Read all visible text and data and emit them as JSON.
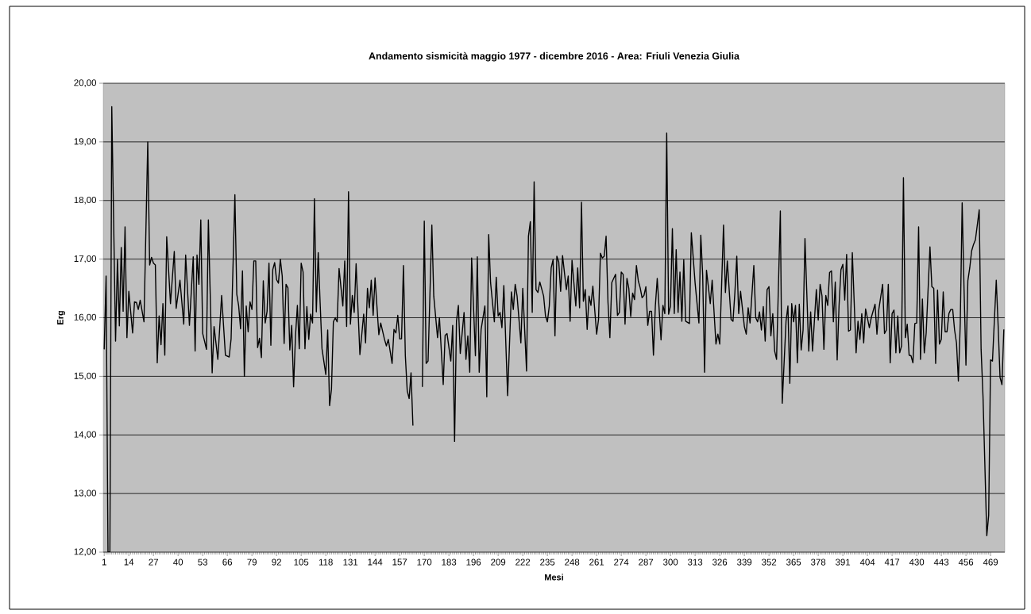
{
  "chart_data": {
    "type": "line",
    "title": "Andamento sismicità maggio 1977 - dicembre 2016 - Area: Friuli Venezia Giulia",
    "xlabel": "Mesi",
    "ylabel": "Erg",
    "xlim": [
      0.5,
      476.5
    ],
    "xticks": [
      1,
      14,
      27,
      40,
      53,
      66,
      79,
      92,
      105,
      118,
      131,
      144,
      157,
      170,
      183,
      196,
      209,
      222,
      235,
      248,
      261,
      274,
      287,
      300,
      313,
      326,
      339,
      352,
      365,
      378,
      391,
      404,
      417,
      430,
      443,
      456,
      469
    ],
    "ylim": [
      12,
      20
    ],
    "yticks": [
      {
        "value": 12,
        "label": "12,00"
      },
      {
        "value": 13,
        "label": "13,00"
      },
      {
        "value": 14,
        "label": "14,00"
      },
      {
        "value": 15,
        "label": "15,00"
      },
      {
        "value": 16,
        "label": "16,00"
      },
      {
        "value": 17,
        "label": "17,00"
      },
      {
        "value": 18,
        "label": "18,00"
      },
      {
        "value": 19,
        "label": "19,00"
      },
      {
        "value": 20,
        "label": "20,00"
      }
    ],
    "grid": "y",
    "marker": "none",
    "line_style": "solid",
    "series": [
      {
        "color": "#000000",
        "x": [
          1,
          2,
          3,
          4,
          5,
          7,
          8,
          9,
          10,
          11,
          12,
          13,
          14,
          16,
          17,
          18,
          19,
          20,
          22,
          24,
          25,
          26,
          27,
          28,
          29,
          30,
          31,
          32,
          33,
          34,
          36,
          38,
          39,
          41,
          43,
          44,
          46,
          48,
          49,
          50,
          51,
          52,
          53,
          55,
          56,
          58,
          59,
          61,
          63,
          65,
          67,
          68,
          70,
          71,
          72,
          73,
          74,
          75,
          76,
          77,
          78,
          79,
          80,
          81,
          82,
          83,
          84,
          85,
          86,
          87,
          88,
          89,
          90,
          91,
          92,
          93,
          94,
          95,
          96,
          97,
          98,
          99,
          100,
          101,
          102,
          103,
          104,
          105,
          106,
          107,
          108,
          109,
          110,
          111,
          112,
          113,
          114,
          115,
          116,
          118,
          119,
          120,
          121,
          122,
          123,
          124,
          125,
          127,
          128,
          129,
          130,
          131,
          132,
          133,
          134,
          136,
          138,
          139,
          140,
          141,
          142,
          143,
          144,
          146,
          147,
          149,
          150,
          151,
          153,
          154,
          155,
          156,
          157,
          158,
          159,
          160,
          161,
          162,
          163,
          164,
          166,
          169,
          170,
          171,
          172,
          174,
          175,
          177,
          178,
          180,
          181,
          182,
          184,
          185,
          186,
          187,
          188,
          189,
          191,
          192,
          193,
          194,
          195,
          197,
          198,
          199,
          200,
          202,
          203,
          204,
          205,
          207,
          208,
          209,
          210,
          211,
          212,
          214,
          216,
          217,
          218,
          219,
          221,
          222,
          224,
          225,
          226,
          227,
          228,
          229,
          230,
          231,
          233,
          234,
          235,
          236,
          237,
          238,
          239,
          240,
          241,
          242,
          243,
          245,
          246,
          247,
          248,
          250,
          251,
          252,
          253,
          254,
          255,
          256,
          257,
          258,
          259,
          261,
          262,
          263,
          264,
          265,
          266,
          267,
          268,
          269,
          271,
          272,
          273,
          274,
          275,
          276,
          277,
          278,
          279,
          280,
          281,
          282,
          283,
          284,
          285,
          286,
          287,
          288,
          289,
          290,
          291,
          292,
          293,
          295,
          296,
          297,
          298,
          299,
          300,
          301,
          302,
          303,
          304,
          305,
          306,
          307,
          308,
          310,
          311,
          313,
          315,
          316,
          317,
          318,
          319,
          321,
          322,
          324,
          325,
          326,
          328,
          329,
          330,
          332,
          333,
          334,
          335,
          336,
          337,
          339,
          340,
          341,
          342,
          344,
          345,
          346,
          347,
          348,
          349,
          350,
          351,
          352,
          353,
          354,
          355,
          356,
          358,
          359,
          361,
          362,
          363,
          364,
          365,
          366,
          367,
          368,
          369,
          370,
          371,
          373,
          374,
          375,
          377,
          378,
          379,
          380,
          381,
          382,
          383,
          384,
          385,
          386,
          387,
          388,
          389,
          390,
          391,
          392,
          393,
          394,
          395,
          396,
          398,
          399,
          400,
          401,
          402,
          403,
          405,
          406,
          408,
          409,
          410,
          412,
          413,
          414,
          415,
          416,
          417,
          418,
          419,
          420,
          421,
          422,
          423,
          424,
          425,
          426,
          427,
          428,
          429,
          430,
          431,
          432,
          433,
          434,
          435,
          437,
          438,
          439,
          440,
          441,
          442,
          443,
          444,
          445,
          446,
          447,
          448,
          449,
          450,
          451,
          452,
          453,
          454,
          455,
          456,
          457,
          458,
          459,
          460,
          461,
          463,
          464,
          465,
          467,
          468,
          469,
          470,
          472,
          473,
          474,
          475,
          476
        ],
        "values": [
          15.46,
          16.71,
          12.0,
          12.0,
          19.6,
          15.6,
          17.0,
          15.86,
          17.2,
          16.11,
          17.55,
          15.66,
          16.45,
          15.74,
          16.27,
          16.26,
          16.14,
          16.3,
          15.93,
          19.0,
          16.9,
          17.03,
          16.93,
          16.9,
          15.23,
          16.03,
          15.54,
          16.24,
          15.36,
          17.38,
          16.24,
          17.13,
          16.16,
          16.64,
          15.89,
          17.07,
          15.87,
          17.04,
          15.43,
          17.07,
          16.57,
          17.67,
          15.73,
          15.46,
          17.67,
          15.06,
          15.85,
          15.29,
          16.38,
          15.36,
          15.33,
          15.64,
          18.1,
          16.4,
          16.2,
          15.81,
          16.8,
          15.0,
          16.2,
          15.76,
          16.27,
          16.14,
          16.97,
          16.97,
          15.49,
          15.65,
          15.32,
          16.63,
          15.91,
          16.11,
          16.93,
          15.53,
          16.82,
          16.94,
          16.65,
          16.59,
          17.0,
          16.71,
          15.56,
          16.57,
          16.51,
          15.45,
          15.87,
          14.82,
          15.69,
          16.21,
          15.47,
          16.93,
          16.78,
          15.47,
          16.19,
          15.63,
          16.06,
          15.91,
          18.03,
          16.1,
          17.11,
          16.26,
          15.47,
          15.03,
          15.79,
          14.5,
          14.78,
          15.93,
          16.0,
          15.93,
          16.84,
          16.2,
          16.97,
          15.85,
          18.15,
          15.89,
          16.38,
          16.09,
          16.92,
          15.37,
          16.06,
          15.57,
          16.5,
          16.17,
          16.64,
          16.04,
          16.68,
          15.71,
          15.91,
          15.63,
          15.52,
          15.63,
          15.22,
          15.8,
          15.74,
          16.04,
          15.64,
          15.64,
          16.89,
          15.35,
          14.75,
          14.62,
          15.06,
          14.16,
          null,
          14.82,
          17.65,
          15.22,
          15.26,
          17.58,
          16.37,
          15.66,
          16.0,
          14.86,
          15.7,
          15.73,
          15.26,
          15.87,
          13.89,
          15.94,
          16.21,
          15.39,
          16.09,
          15.29,
          15.69,
          15.07,
          17.02,
          15.35,
          17.04,
          15.07,
          15.8,
          16.2,
          14.65,
          17.42,
          16.6,
          15.93,
          16.69,
          16.03,
          16.09,
          15.83,
          16.55,
          14.67,
          16.44,
          16.14,
          16.57,
          16.37,
          15.57,
          16.5,
          15.09,
          17.39,
          17.64,
          16.09,
          18.32,
          16.48,
          16.43,
          16.61,
          16.37,
          16.03,
          15.93,
          16.2,
          16.85,
          16.99,
          15.69,
          17.05,
          16.95,
          16.45,
          17.06,
          16.48,
          16.71,
          15.94,
          16.98,
          16.2,
          16.85,
          16.17,
          17.97,
          16.28,
          16.48,
          15.8,
          16.37,
          16.21,
          16.54,
          15.72,
          15.97,
          17.1,
          17.02,
          17.05,
          17.39,
          16.26,
          15.66,
          16.6,
          16.74,
          16.04,
          16.09,
          16.78,
          16.74,
          15.89,
          16.67,
          16.5,
          16.02,
          16.42,
          16.31,
          16.89,
          16.63,
          16.51,
          16.34,
          16.38,
          16.53,
          15.87,
          16.11,
          16.11,
          15.36,
          16.2,
          16.67,
          15.62,
          16.21,
          16.07,
          19.15,
          16.06,
          16.2,
          17.52,
          16.07,
          17.16,
          16.09,
          16.78,
          15.94,
          16.99,
          15.94,
          15.9,
          17.45,
          16.59,
          15.91,
          17.41,
          16.72,
          15.07,
          16.81,
          16.24,
          16.64,
          15.55,
          15.72,
          15.55,
          17.58,
          16.43,
          16.97,
          15.97,
          15.94,
          16.43,
          17.05,
          16.07,
          16.45,
          15.85,
          15.72,
          16.17,
          15.91,
          16.89,
          16.0,
          15.93,
          16.1,
          15.79,
          16.19,
          15.6,
          16.48,
          16.53,
          15.69,
          16.07,
          15.43,
          15.29,
          17.82,
          14.54,
          15.94,
          16.2,
          14.88,
          16.24,
          15.93,
          16.21,
          15.23,
          16.23,
          15.45,
          15.79,
          17.35,
          15.43,
          16.1,
          15.43,
          16.48,
          15.96,
          16.57,
          16.37,
          15.46,
          16.38,
          16.21,
          16.77,
          16.8,
          15.93,
          16.61,
          15.28,
          16.21,
          16.82,
          16.91,
          16.3,
          17.08,
          15.77,
          15.79,
          17.11,
          15.4,
          15.94,
          15.63,
          16.07,
          15.57,
          16.15,
          15.83,
          16.0,
          16.23,
          15.72,
          16.14,
          16.57,
          15.73,
          15.79,
          16.57,
          15.23,
          16.07,
          16.13,
          15.4,
          16.03,
          15.4,
          15.52,
          18.39,
          15.66,
          15.89,
          15.36,
          15.35,
          15.23,
          15.9,
          15.91,
          17.55,
          15.29,
          16.32,
          15.4,
          15.74,
          17.21,
          16.53,
          16.5,
          15.22,
          16.47,
          15.55,
          15.63,
          16.44,
          15.76,
          15.76,
          16.07,
          16.14,
          16.14,
          15.79,
          15.57,
          14.92,
          15.91,
          17.96,
          16.48,
          15.19,
          16.63,
          16.85,
          17.14,
          17.25,
          17.33,
          17.84,
          15.46,
          14.66,
          12.28,
          12.63,
          15.28,
          15.26,
          16.64,
          15.86,
          14.98,
          14.86,
          15.8
        ]
      }
    ]
  }
}
